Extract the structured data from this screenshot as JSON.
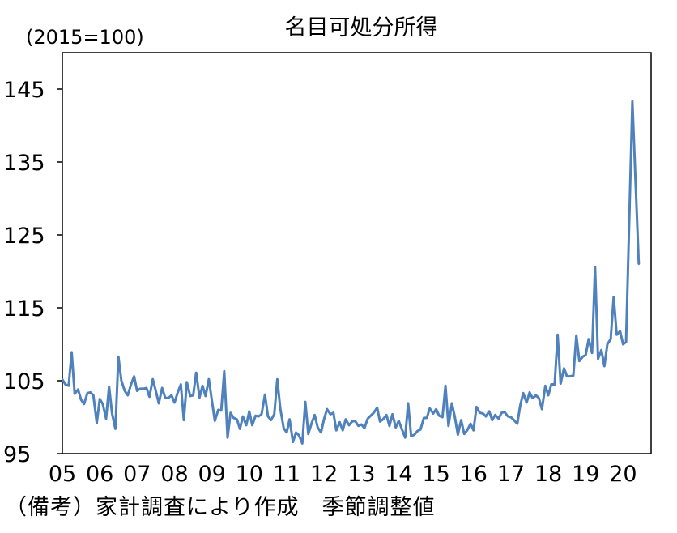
{
  "chart_data": {
    "type": "line",
    "title": "名目可処分所得",
    "unit_label": "(2015=100)",
    "ylim": [
      95,
      150
    ],
    "yticks": [
      {
        "value": 95,
        "label": "95"
      },
      {
        "value": 105,
        "label": "105"
      },
      {
        "value": 115,
        "label": "115"
      },
      {
        "value": 125,
        "label": "125"
      },
      {
        "value": 135,
        "label": "135"
      },
      {
        "value": 145,
        "label": "145"
      }
    ],
    "xlim": [
      2005.0,
      2020.75
    ],
    "xticks": [
      {
        "value": 2005.0,
        "label": "05"
      },
      {
        "value": 2006.0,
        "label": "06"
      },
      {
        "value": 2007.0,
        "label": "07"
      },
      {
        "value": 2008.0,
        "label": "08"
      },
      {
        "value": 2009.0,
        "label": "09"
      },
      {
        "value": 2010.0,
        "label": "10"
      },
      {
        "value": 2011.0,
        "label": "11"
      },
      {
        "value": 2012.0,
        "label": "12"
      },
      {
        "value": 2013.0,
        "label": "13"
      },
      {
        "value": 2014.0,
        "label": "14"
      },
      {
        "value": 2015.0,
        "label": "15"
      },
      {
        "value": 2016.0,
        "label": "16"
      },
      {
        "value": 2017.0,
        "label": "17"
      },
      {
        "value": 2018.0,
        "label": "18"
      },
      {
        "value": 2019.0,
        "label": "19"
      },
      {
        "value": 2020.0,
        "label": "20"
      }
    ],
    "grid": false,
    "legend": "none",
    "series": [
      {
        "color": "#4F81BD",
        "points": [
          [
            2005.0,
            105.2
          ],
          [
            2005.08,
            104.5
          ],
          [
            2005.17,
            104.3
          ],
          [
            2005.25,
            108.9
          ],
          [
            2005.33,
            103.2
          ],
          [
            2005.42,
            103.8
          ],
          [
            2005.5,
            102.4
          ],
          [
            2005.58,
            101.8
          ],
          [
            2005.67,
            103.3
          ],
          [
            2005.75,
            103.4
          ],
          [
            2005.83,
            103.0
          ],
          [
            2005.92,
            99.2
          ],
          [
            2006.0,
            102.5
          ],
          [
            2006.08,
            101.8
          ],
          [
            2006.17,
            99.8
          ],
          [
            2006.25,
            104.2
          ],
          [
            2006.33,
            100.5
          ],
          [
            2006.42,
            98.4
          ],
          [
            2006.5,
            108.3
          ],
          [
            2006.58,
            105.0
          ],
          [
            2006.67,
            103.6
          ],
          [
            2006.75,
            103.0
          ],
          [
            2006.83,
            104.4
          ],
          [
            2006.92,
            105.6
          ],
          [
            2007.0,
            103.6
          ],
          [
            2007.08,
            103.9
          ],
          [
            2007.17,
            103.9
          ],
          [
            2007.25,
            104.0
          ],
          [
            2007.33,
            102.8
          ],
          [
            2007.42,
            105.2
          ],
          [
            2007.5,
            103.6
          ],
          [
            2007.58,
            101.9
          ],
          [
            2007.67,
            104.0
          ],
          [
            2007.75,
            102.7
          ],
          [
            2007.83,
            102.6
          ],
          [
            2007.92,
            103.0
          ],
          [
            2008.0,
            102.0
          ],
          [
            2008.08,
            103.3
          ],
          [
            2008.17,
            104.5
          ],
          [
            2008.25,
            99.6
          ],
          [
            2008.33,
            104.8
          ],
          [
            2008.42,
            102.9
          ],
          [
            2008.5,
            103.0
          ],
          [
            2008.58,
            106.1
          ],
          [
            2008.67,
            102.7
          ],
          [
            2008.75,
            104.3
          ],
          [
            2008.83,
            102.9
          ],
          [
            2008.92,
            105.2
          ],
          [
            2009.0,
            102.3
          ],
          [
            2009.08,
            99.5
          ],
          [
            2009.17,
            101.0
          ],
          [
            2009.25,
            100.9
          ],
          [
            2009.33,
            106.3
          ],
          [
            2009.42,
            97.2
          ],
          [
            2009.5,
            100.6
          ],
          [
            2009.58,
            99.9
          ],
          [
            2009.67,
            99.7
          ],
          [
            2009.75,
            98.4
          ],
          [
            2009.83,
            100.1
          ],
          [
            2009.92,
            98.9
          ],
          [
            2010.0,
            100.8
          ],
          [
            2010.08,
            98.9
          ],
          [
            2010.17,
            100.2
          ],
          [
            2010.25,
            100.1
          ],
          [
            2010.33,
            100.4
          ],
          [
            2010.42,
            103.1
          ],
          [
            2010.5,
            100.1
          ],
          [
            2010.58,
            99.6
          ],
          [
            2010.67,
            100.4
          ],
          [
            2010.75,
            105.2
          ],
          [
            2010.83,
            101.2
          ],
          [
            2010.92,
            98.5
          ],
          [
            2011.0,
            97.9
          ],
          [
            2011.08,
            99.7
          ],
          [
            2011.17,
            96.6
          ],
          [
            2011.25,
            97.9
          ],
          [
            2011.33,
            97.5
          ],
          [
            2011.42,
            96.4
          ],
          [
            2011.5,
            102.1
          ],
          [
            2011.58,
            97.7
          ],
          [
            2011.67,
            99.2
          ],
          [
            2011.75,
            100.3
          ],
          [
            2011.83,
            98.6
          ],
          [
            2011.92,
            97.9
          ],
          [
            2012.0,
            99.7
          ],
          [
            2012.08,
            101.1
          ],
          [
            2012.17,
            100.4
          ],
          [
            2012.25,
            100.6
          ],
          [
            2012.33,
            98.2
          ],
          [
            2012.42,
            99.3
          ],
          [
            2012.5,
            98.2
          ],
          [
            2012.58,
            99.7
          ],
          [
            2012.67,
            98.9
          ],
          [
            2012.75,
            99.4
          ],
          [
            2012.83,
            99.5
          ],
          [
            2012.92,
            98.8
          ],
          [
            2013.0,
            99.0
          ],
          [
            2013.08,
            98.5
          ],
          [
            2013.17,
            99.8
          ],
          [
            2013.25,
            100.2
          ],
          [
            2013.33,
            100.6
          ],
          [
            2013.42,
            101.3
          ],
          [
            2013.5,
            99.4
          ],
          [
            2013.58,
            99.7
          ],
          [
            2013.67,
            100.3
          ],
          [
            2013.75,
            98.8
          ],
          [
            2013.83,
            100.4
          ],
          [
            2013.92,
            98.6
          ],
          [
            2014.0,
            99.5
          ],
          [
            2014.08,
            98.4
          ],
          [
            2014.17,
            97.2
          ],
          [
            2014.25,
            101.9
          ],
          [
            2014.33,
            97.4
          ],
          [
            2014.42,
            97.6
          ],
          [
            2014.5,
            98.1
          ],
          [
            2014.58,
            98.3
          ],
          [
            2014.67,
            99.9
          ],
          [
            2014.75,
            99.9
          ],
          [
            2014.83,
            101.2
          ],
          [
            2014.92,
            100.5
          ],
          [
            2015.0,
            101.1
          ],
          [
            2015.08,
            100.2
          ],
          [
            2015.17,
            100.0
          ],
          [
            2015.25,
            104.3
          ],
          [
            2015.33,
            98.8
          ],
          [
            2015.42,
            101.9
          ],
          [
            2015.5,
            100.0
          ],
          [
            2015.58,
            97.6
          ],
          [
            2015.67,
            99.6
          ],
          [
            2015.75,
            97.7
          ],
          [
            2015.83,
            98.2
          ],
          [
            2015.92,
            99.1
          ],
          [
            2016.0,
            98.2
          ],
          [
            2016.08,
            101.4
          ],
          [
            2016.17,
            100.6
          ],
          [
            2016.25,
            100.5
          ],
          [
            2016.33,
            100.1
          ],
          [
            2016.42,
            100.8
          ],
          [
            2016.5,
            99.6
          ],
          [
            2016.58,
            100.3
          ],
          [
            2016.67,
            99.8
          ],
          [
            2016.75,
            100.6
          ],
          [
            2016.83,
            100.7
          ],
          [
            2016.92,
            100.1
          ],
          [
            2017.0,
            100.0
          ],
          [
            2017.08,
            99.6
          ],
          [
            2017.17,
            99.1
          ],
          [
            2017.25,
            101.6
          ],
          [
            2017.33,
            103.3
          ],
          [
            2017.42,
            102.0
          ],
          [
            2017.5,
            103.4
          ],
          [
            2017.58,
            102.6
          ],
          [
            2017.67,
            103.0
          ],
          [
            2017.75,
            102.6
          ],
          [
            2017.83,
            101.1
          ],
          [
            2017.92,
            104.3
          ],
          [
            2018.0,
            103.0
          ],
          [
            2018.08,
            104.5
          ],
          [
            2018.17,
            104.5
          ],
          [
            2018.25,
            111.3
          ],
          [
            2018.33,
            104.6
          ],
          [
            2018.42,
            106.7
          ],
          [
            2018.5,
            105.6
          ],
          [
            2018.58,
            105.6
          ],
          [
            2018.67,
            105.7
          ],
          [
            2018.75,
            111.2
          ],
          [
            2018.83,
            107.7
          ],
          [
            2018.92,
            108.3
          ],
          [
            2019.0,
            108.5
          ],
          [
            2019.08,
            110.7
          ],
          [
            2019.17,
            108.8
          ],
          [
            2019.25,
            120.6
          ],
          [
            2019.33,
            108.0
          ],
          [
            2019.42,
            109.2
          ],
          [
            2019.5,
            107.0
          ],
          [
            2019.58,
            110.0
          ],
          [
            2019.67,
            110.7
          ],
          [
            2019.75,
            116.5
          ],
          [
            2019.83,
            111.3
          ],
          [
            2019.92,
            111.8
          ],
          [
            2020.0,
            110.0
          ],
          [
            2020.08,
            110.3
          ],
          [
            2020.25,
            143.3
          ],
          [
            2020.42,
            121.0
          ]
        ]
      }
    ]
  },
  "footnote": "（備考）家計調査により作成　季節調整値"
}
